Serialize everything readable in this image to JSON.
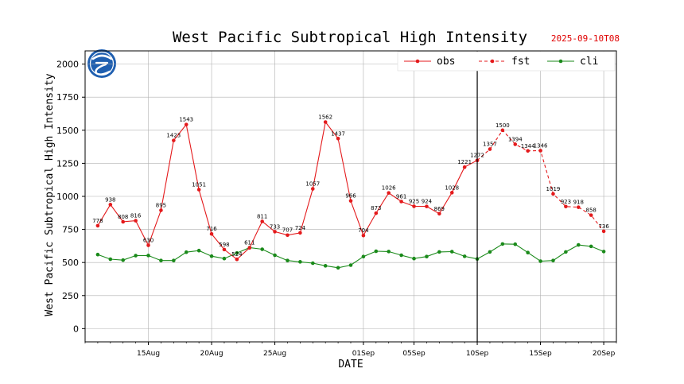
{
  "header": {
    "title": "West Pacific Subtropical High Intensity",
    "date_stamp": "2025-09-10T08"
  },
  "chart_data": {
    "type": "line",
    "title": "West Pacific Subtropical High Intensity",
    "xlabel": "DATE",
    "ylabel": "West Pacific Subtropical High Intensity",
    "ylim": [
      -100,
      2100
    ],
    "yticks": [
      0,
      250,
      500,
      750,
      1000,
      1250,
      1500,
      1750,
      2000
    ],
    "x_start": "2025-08-10",
    "x_end": "2025-09-21",
    "x_ticks": [
      {
        "label": "15Aug",
        "date": "2025-08-15"
      },
      {
        "label": "20Aug",
        "date": "2025-08-20"
      },
      {
        "label": "25Aug",
        "date": "2025-08-25"
      },
      {
        "label": "01Sep",
        "date": "2025-09-01"
      },
      {
        "label": "05Sep",
        "date": "2025-09-05"
      },
      {
        "label": "10Sep",
        "date": "2025-09-10"
      },
      {
        "label": "15Sep",
        "date": "2025-09-15"
      },
      {
        "label": "20Sep",
        "date": "2025-09-20"
      }
    ],
    "vline_date": "2025-09-10",
    "grid": true,
    "legend_position": "top-right",
    "colors": {
      "obs": "#e41a1c",
      "fst": "#e41a1c",
      "cli": "#1a8a1a",
      "vline": "#000000",
      "grid": "#b0b0b0"
    },
    "series": [
      {
        "name": "obs",
        "style": "solid",
        "labeled": true,
        "x": [
          "2025-08-11",
          "2025-08-12",
          "2025-08-13",
          "2025-08-14",
          "2025-08-15",
          "2025-08-16",
          "2025-08-17",
          "2025-08-18",
          "2025-08-19",
          "2025-08-20",
          "2025-08-21",
          "2025-08-22",
          "2025-08-23",
          "2025-08-24",
          "2025-08-25",
          "2025-08-26",
          "2025-08-27",
          "2025-08-28",
          "2025-08-29",
          "2025-08-30",
          "2025-08-31",
          "2025-09-01",
          "2025-09-02",
          "2025-09-03",
          "2025-09-04",
          "2025-09-05",
          "2025-09-06",
          "2025-09-07",
          "2025-09-08",
          "2025-09-09",
          "2025-09-10"
        ],
        "values": [
          778,
          938,
          808,
          816,
          630,
          895,
          1423,
          1543,
          1051,
          716,
          598,
          524,
          611,
          811,
          733,
          707,
          724,
          1057,
          1562,
          1437,
          966,
          704,
          873,
          1026,
          961,
          925,
          924,
          869,
          1028,
          1221,
          1272
        ]
      },
      {
        "name": "fst",
        "style": "dashed",
        "labeled": true,
        "x": [
          "2025-09-10",
          "2025-09-11",
          "2025-09-12",
          "2025-09-13",
          "2025-09-14",
          "2025-09-15",
          "2025-09-16",
          "2025-09-17",
          "2025-09-18",
          "2025-09-19",
          "2025-09-20"
        ],
        "values": [
          1272,
          1357,
          1500,
          1394,
          1344,
          1346,
          1019,
          923,
          918,
          858,
          736
        ]
      },
      {
        "name": "cli",
        "style": "solid",
        "labeled": false,
        "x": [
          "2025-08-11",
          "2025-08-12",
          "2025-08-13",
          "2025-08-14",
          "2025-08-15",
          "2025-08-16",
          "2025-08-17",
          "2025-08-18",
          "2025-08-19",
          "2025-08-20",
          "2025-08-21",
          "2025-08-22",
          "2025-08-23",
          "2025-08-24",
          "2025-08-25",
          "2025-08-26",
          "2025-08-27",
          "2025-08-28",
          "2025-08-29",
          "2025-08-30",
          "2025-08-31",
          "2025-09-01",
          "2025-09-02",
          "2025-09-03",
          "2025-09-04",
          "2025-09-05",
          "2025-09-06",
          "2025-09-07",
          "2025-09-08",
          "2025-09-09",
          "2025-09-10",
          "2025-09-11",
          "2025-09-12",
          "2025-09-13",
          "2025-09-14",
          "2025-09-15",
          "2025-09-16",
          "2025-09-17",
          "2025-09-18",
          "2025-09-19",
          "2025-09-20"
        ],
        "values": [
          560,
          525,
          518,
          552,
          553,
          515,
          515,
          578,
          590,
          548,
          530,
          572,
          612,
          600,
          555,
          515,
          505,
          495,
          475,
          460,
          480,
          545,
          585,
          583,
          555,
          530,
          545,
          580,
          582,
          547,
          527,
          580,
          640,
          638,
          575,
          510,
          515,
          580,
          633,
          622,
          583
        ]
      }
    ]
  }
}
